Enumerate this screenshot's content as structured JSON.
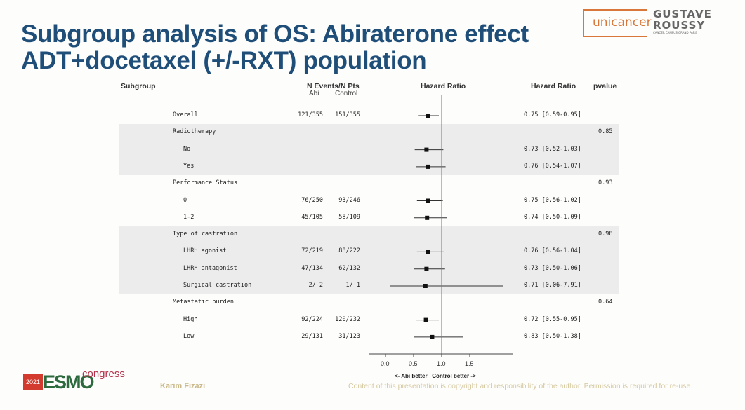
{
  "slide": {
    "title_line1": "Subgroup analysis of OS: Abiraterone effect",
    "title_line2": "ADT+docetaxel (+/-RXT) population",
    "author": "Karim Fizazi",
    "copyright": "Content of this presentation is copyright and responsibility of the author. Permission is required for re-use.",
    "logos": {
      "unicancer": "unicancer",
      "gustave_roussy": "GUSTAVE ROUSSY",
      "gustave_sub": "CANCER CAMPUS GRAND PARIS",
      "esmo_year": "2021",
      "esmo_word": "ESMO",
      "esmo_congress": "congress"
    }
  },
  "colors": {
    "title": "#1f4e79",
    "band": "#ececec",
    "marker": "#111111"
  },
  "chart_data": {
    "type": "forest",
    "headers": {
      "subgroup": "Subgroup",
      "events": "N Events/N Pts",
      "abi": "Abi",
      "control": "Control",
      "plot": "Hazard Ratio",
      "hr": "Hazard Ratio",
      "pvalue": "pvalue"
    },
    "xlim": [
      0,
      2.0
    ],
    "ticks": [
      "0.0",
      "0.5",
      "1.0",
      "1.5"
    ],
    "reference_line": 1.0,
    "xlabel_left": "<- Abi better",
    "xlabel_right": "Control better ->",
    "rows": [
      {
        "label": "Overall",
        "level": 0,
        "abi": "121/355",
        "control": "151/355",
        "hr": 0.75,
        "lo": 0.59,
        "hi": 0.95,
        "hr_text": "0.75 [0.59-0.95]",
        "pvalue": "",
        "shaded": false
      },
      {
        "label": "Radiotherapy",
        "level": 0,
        "abi": "",
        "control": "",
        "hr": null,
        "lo": null,
        "hi": null,
        "hr_text": "",
        "pvalue": "0.85",
        "shaded": true
      },
      {
        "label": "No",
        "level": 1,
        "abi": "",
        "control": "",
        "hr": 0.73,
        "lo": 0.52,
        "hi": 1.03,
        "hr_text": "0.73 [0.52-1.03]",
        "pvalue": "",
        "shaded": true
      },
      {
        "label": "Yes",
        "level": 1,
        "abi": "",
        "control": "",
        "hr": 0.76,
        "lo": 0.54,
        "hi": 1.07,
        "hr_text": "0.76 [0.54-1.07]",
        "pvalue": "",
        "shaded": true
      },
      {
        "label": "Performance Status",
        "level": 0,
        "abi": "",
        "control": "",
        "hr": null,
        "lo": null,
        "hi": null,
        "hr_text": "",
        "pvalue": "0.93",
        "shaded": false
      },
      {
        "label": "0",
        "level": 1,
        "abi": "76/250",
        "control": "93/246",
        "hr": 0.75,
        "lo": 0.56,
        "hi": 1.02,
        "hr_text": "0.75 [0.56-1.02]",
        "pvalue": "",
        "shaded": false
      },
      {
        "label": "1-2",
        "level": 1,
        "abi": "45/105",
        "control": "58/109",
        "hr": 0.74,
        "lo": 0.5,
        "hi": 1.09,
        "hr_text": "0.74 [0.50-1.09]",
        "pvalue": "",
        "shaded": false
      },
      {
        "label": "Type of castration",
        "level": 0,
        "abi": "",
        "control": "",
        "hr": null,
        "lo": null,
        "hi": null,
        "hr_text": "",
        "pvalue": "0.98",
        "shaded": true
      },
      {
        "label": "LHRH agonist",
        "level": 1,
        "abi": "72/219",
        "control": "88/222",
        "hr": 0.76,
        "lo": 0.56,
        "hi": 1.04,
        "hr_text": "0.76 [0.56-1.04]",
        "pvalue": "",
        "shaded": true
      },
      {
        "label": "LHRH antagonist",
        "level": 1,
        "abi": "47/134",
        "control": "62/132",
        "hr": 0.73,
        "lo": 0.5,
        "hi": 1.06,
        "hr_text": "0.73 [0.50-1.06]",
        "pvalue": "",
        "shaded": true
      },
      {
        "label": "Surgical castration",
        "level": 1,
        "abi": "2/ 2",
        "control": "1/ 1",
        "hr": 0.71,
        "lo": 0.06,
        "hi": 7.91,
        "hr_text": "0.71 [0.06-7.91]",
        "pvalue": "",
        "shaded": true
      },
      {
        "label": "Metastatic burden",
        "level": 0,
        "abi": "",
        "control": "",
        "hr": null,
        "lo": null,
        "hi": null,
        "hr_text": "",
        "pvalue": "0.64",
        "shaded": false
      },
      {
        "label": "High",
        "level": 1,
        "abi": "92/224",
        "control": "120/232",
        "hr": 0.72,
        "lo": 0.55,
        "hi": 0.95,
        "hr_text": "0.72 [0.55-0.95]",
        "pvalue": "",
        "shaded": false
      },
      {
        "label": "Low",
        "level": 1,
        "abi": "29/131",
        "control": "31/123",
        "hr": 0.83,
        "lo": 0.5,
        "hi": 1.38,
        "hr_text": "0.83 [0.50-1.38]",
        "pvalue": "",
        "shaded": false
      }
    ]
  }
}
